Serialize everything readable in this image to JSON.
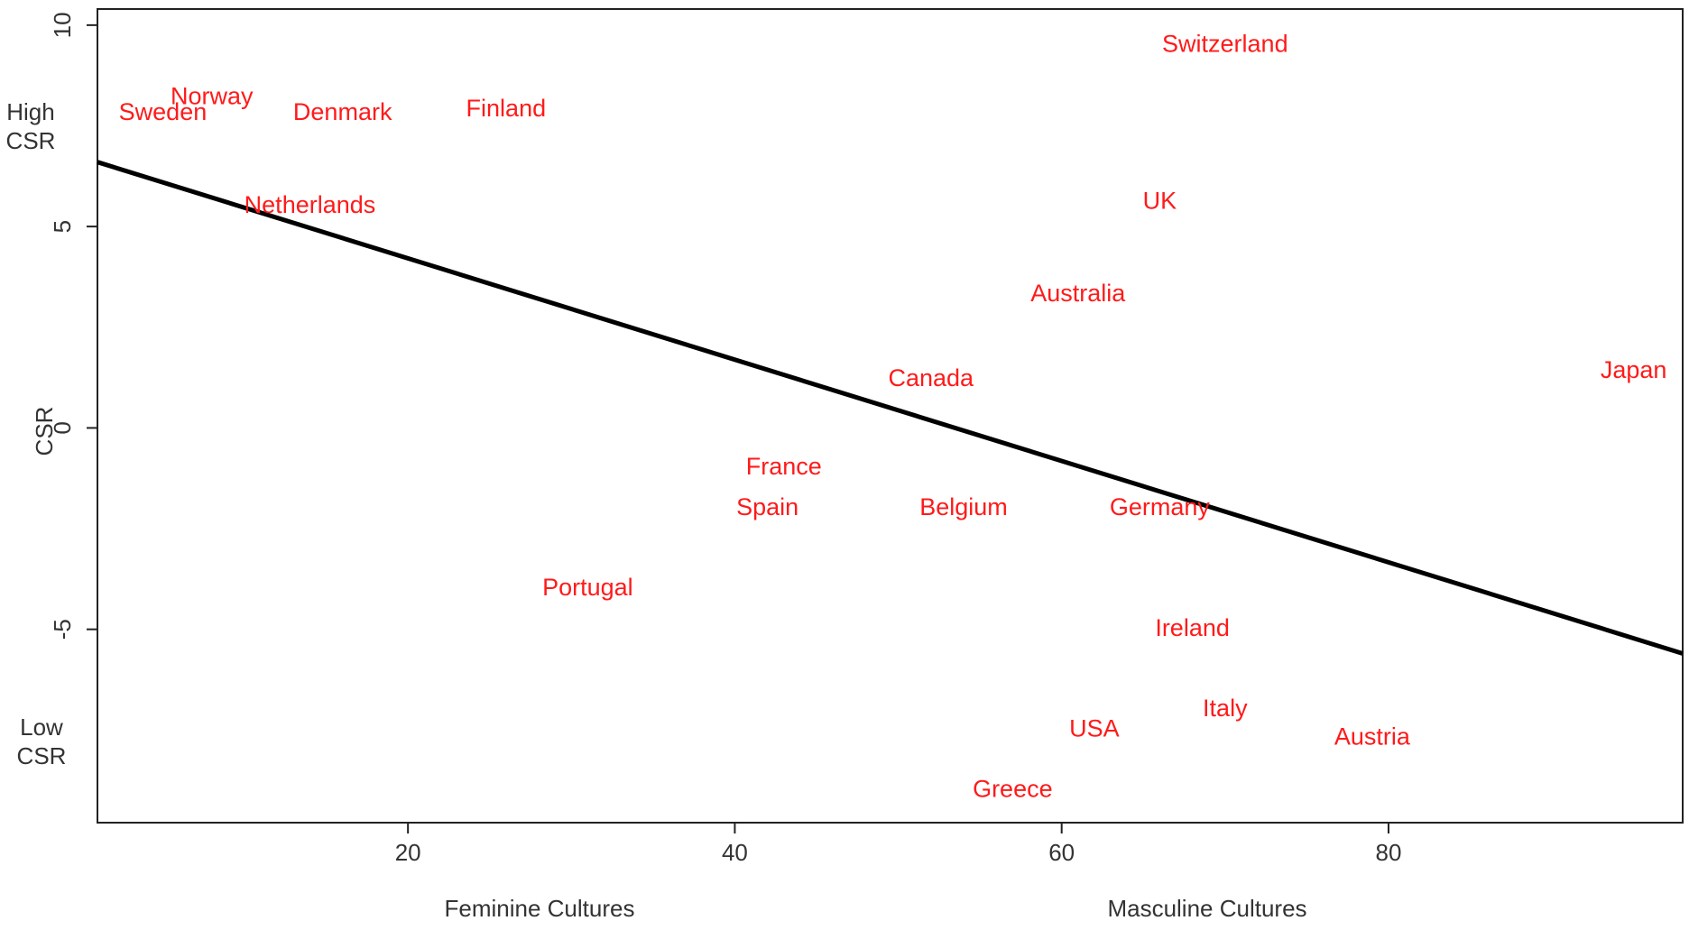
{
  "chart_data": {
    "type": "scatter",
    "title": "",
    "xlabel_left": "Feminine Cultures",
    "xlabel_right": "Masculine Cultures",
    "ylabel": "CSR",
    "ylabel_high": "High CSR",
    "ylabel_low": "Low CSR",
    "xlim": [
      1,
      98
    ],
    "ylim": [
      -9.8,
      10.4
    ],
    "xticks": [
      20,
      40,
      60,
      80
    ],
    "yticks": [
      -5,
      0,
      5,
      10
    ],
    "grid": false,
    "label_color": "#ff1a1a",
    "points": [
      {
        "label": "Switzerland",
        "x": 70,
        "y": 9.5
      },
      {
        "label": "Norway",
        "x": 8,
        "y": 8.2
      },
      {
        "label": "Sweden",
        "x": 5,
        "y": 7.8
      },
      {
        "label": "Denmark",
        "x": 16,
        "y": 7.8
      },
      {
        "label": "Finland",
        "x": 26,
        "y": 7.9
      },
      {
        "label": "Netherlands",
        "x": 14,
        "y": 5.5
      },
      {
        "label": "UK",
        "x": 66,
        "y": 5.6
      },
      {
        "label": "Australia",
        "x": 61,
        "y": 3.3
      },
      {
        "label": "Japan",
        "x": 95,
        "y": 1.4
      },
      {
        "label": "Canada",
        "x": 52,
        "y": 1.2
      },
      {
        "label": "France",
        "x": 43,
        "y": -1.0
      },
      {
        "label": "Spain",
        "x": 42,
        "y": -2.0
      },
      {
        "label": "Belgium",
        "x": 54,
        "y": -2.0
      },
      {
        "label": "Germany",
        "x": 66,
        "y": -2.0
      },
      {
        "label": "Portugal",
        "x": 31,
        "y": -4.0
      },
      {
        "label": "Ireland",
        "x": 68,
        "y": -5.0
      },
      {
        "label": "Italy",
        "x": 70,
        "y": -7.0
      },
      {
        "label": "USA",
        "x": 62,
        "y": -7.5
      },
      {
        "label": "Austria",
        "x": 79,
        "y": -7.7
      },
      {
        "label": "Greece",
        "x": 57,
        "y": -9.0
      }
    ],
    "regression_line": {
      "x": [
        1,
        98
      ],
      "y": [
        6.6,
        -5.6
      ]
    }
  }
}
